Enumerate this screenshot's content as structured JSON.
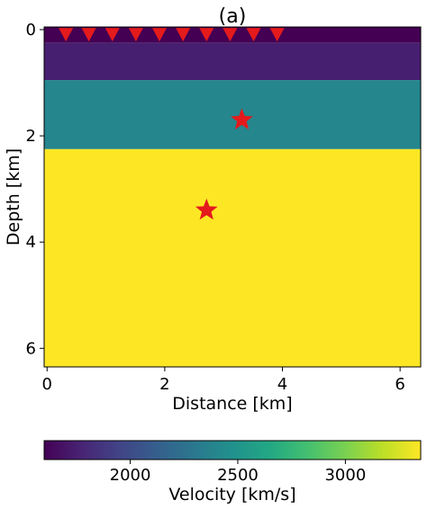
{
  "chart_data": {
    "type": "heatmap",
    "title": "(a)",
    "xlabel": "Distance [km]",
    "ylabel": "Depth [km]",
    "xlim": [
      -0.05,
      6.35
    ],
    "ylim": [
      6.35,
      -0.05
    ],
    "xticks": [
      0,
      2,
      4,
      6
    ],
    "yticks": [
      0,
      2,
      4,
      6
    ],
    "xtick_labels": [
      "0",
      "2",
      "4",
      "6"
    ],
    "ytick_labels": [
      "0",
      "2",
      "4",
      "6"
    ],
    "grid": false,
    "colormap": "viridis",
    "layers": [
      {
        "top": -0.05,
        "bottom": 0.25,
        "velocity": 1600
      },
      {
        "top": 0.25,
        "bottom": 0.95,
        "velocity": 1750
      },
      {
        "top": 0.95,
        "bottom": 2.25,
        "velocity": 2400
      },
      {
        "top": 2.25,
        "bottom": 6.35,
        "velocity": 3350
      }
    ],
    "receivers": {
      "marker": "inverted-triangle",
      "color": "#e41a1c",
      "depth": 0.07,
      "x": [
        0.32,
        0.71,
        1.11,
        1.51,
        1.91,
        2.31,
        2.71,
        3.11,
        3.51,
        3.91
      ]
    },
    "sources": {
      "marker": "star",
      "color": "#e41a1c",
      "points": [
        {
          "x": 3.31,
          "y": 1.7
        },
        {
          "x": 2.71,
          "y": 3.4
        }
      ]
    },
    "colorbar": {
      "label": "Velocity [km/s]",
      "vmin": 1600,
      "vmax": 3350,
      "ticks": [
        2000,
        2500,
        3000
      ],
      "tick_labels": [
        "2000",
        "2500",
        "3000"
      ],
      "orientation": "horizontal",
      "placement": "bottom"
    }
  }
}
